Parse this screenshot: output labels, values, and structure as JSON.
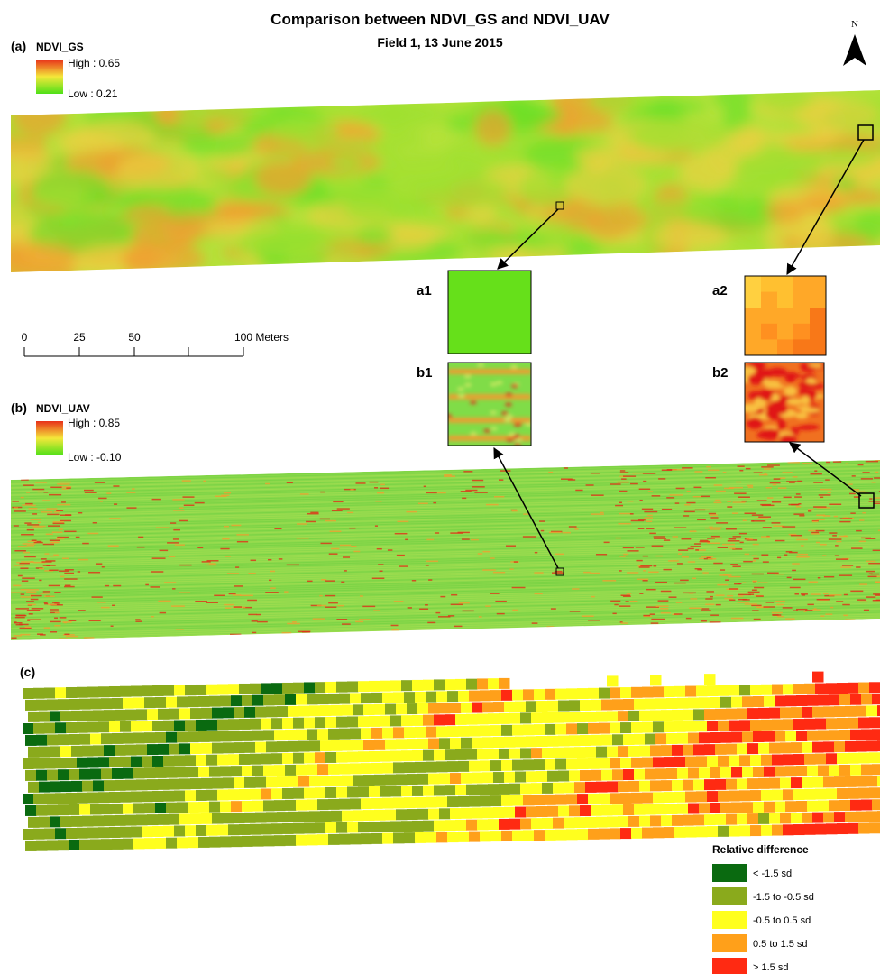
{
  "header": {
    "title": "Comparison between NDVI_GS and NDVI_UAV",
    "subtitle": "Field 1, 13 June 2015"
  },
  "north": "N",
  "panel_a": {
    "tag": "(a)",
    "layer": "NDVI_GS",
    "high": "High : 0.65",
    "low": "Low : 0.21"
  },
  "insets": [
    {
      "label": "a1"
    },
    {
      "label": "a2"
    },
    {
      "label": "b1"
    },
    {
      "label": "b2"
    }
  ],
  "scale_bar": {
    "labels": [
      "0",
      "25",
      "50",
      "100 Meters"
    ]
  },
  "panel_b": {
    "tag": "(b)",
    "layer": "NDVI_UAV",
    "high": "High : 0.85",
    "low": "Low : -0.10"
  },
  "panel_c": {
    "tag": "(c)",
    "legend": {
      "title": "Relative difference",
      "items": [
        {
          "label": "< -1.5 sd",
          "color": "#0a6a10"
        },
        {
          "label": "-1.5 to -0.5 sd",
          "color": "#8aaa1c"
        },
        {
          "label": "-0.5 to 0.5 sd",
          "color": "#ffff1e"
        },
        {
          "label": "0.5 to 1.5 sd",
          "color": "#ffa01a"
        },
        {
          "label": "> 1.5 sd",
          "color": "#ff2a12"
        }
      ]
    }
  }
}
